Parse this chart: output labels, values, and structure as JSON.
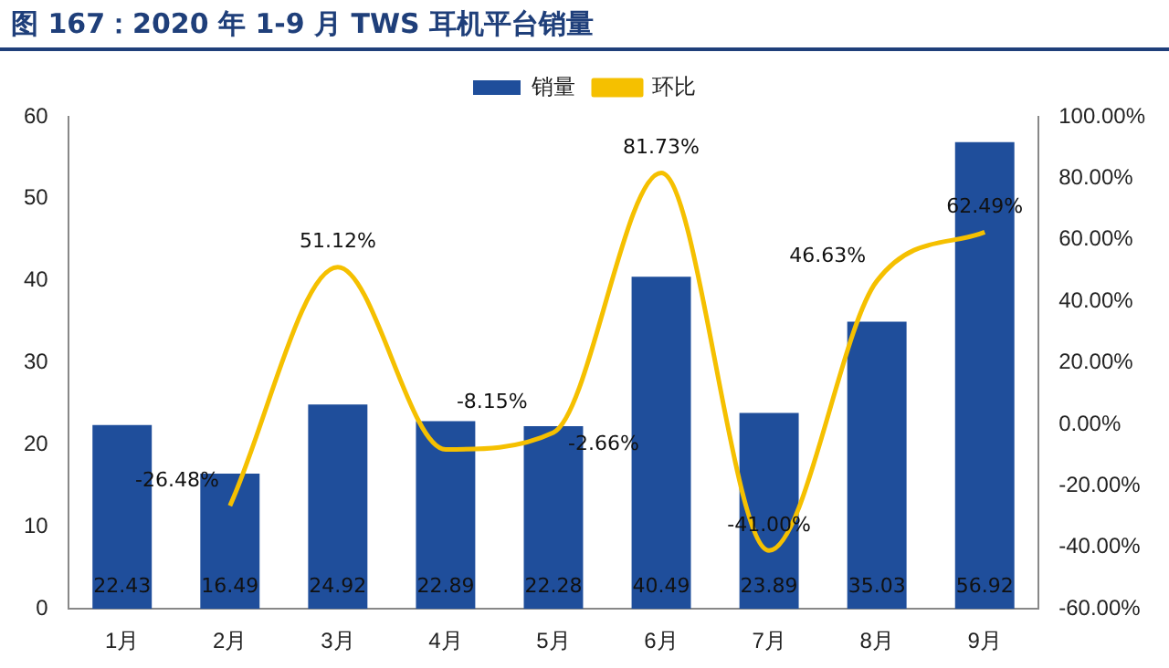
{
  "chart_data": {
    "type": "bar",
    "title": "图 167：2020 年 1-9 月 TWS 耳机平台销量",
    "categories": [
      "1月",
      "2月",
      "3月",
      "4月",
      "5月",
      "6月",
      "7月",
      "8月",
      "9月"
    ],
    "series": [
      {
        "name": "销量",
        "color": "#1f4e9b",
        "values": [
          22.43,
          16.49,
          24.92,
          22.89,
          22.28,
          40.49,
          23.89,
          35.03,
          56.92
        ],
        "value_labels": [
          "22.43",
          "16.49",
          "24.92",
          "22.89",
          "22.28",
          "40.49",
          "23.89",
          "35.03",
          "56.92"
        ]
      },
      {
        "name": "环比",
        "type": "line",
        "axis": "y2",
        "color": "#f5c000",
        "marker": "none",
        "values": [
          null,
          -26.48,
          51.12,
          -8.15,
          -2.66,
          81.73,
          -41.0,
          46.63,
          62.49
        ],
        "value_labels": [
          null,
          "-26.48%",
          "51.12%",
          "-8.15%",
          "-2.66%",
          "81.73%",
          "-41.00%",
          "46.63%",
          "62.49%"
        ]
      }
    ],
    "ylim": [
      0,
      60
    ],
    "yticks": [
      0,
      10,
      20,
      30,
      40,
      50,
      60
    ],
    "y2lim": [
      -60,
      100
    ],
    "y2ticks": [
      {
        "value": -60,
        "label": "-60.00%"
      },
      {
        "value": -40,
        "label": "-40.00%"
      },
      {
        "value": -20,
        "label": "-20.00%"
      },
      {
        "value": 0,
        "label": "0.00%"
      },
      {
        "value": 20,
        "label": "20.00%"
      },
      {
        "value": 40,
        "label": "40.00%"
      },
      {
        "value": 60,
        "label": "60.00%"
      },
      {
        "value": 80,
        "label": "80.00%"
      },
      {
        "value": 100,
        "label": "100.00%"
      }
    ],
    "legend": "top",
    "grid": false
  }
}
